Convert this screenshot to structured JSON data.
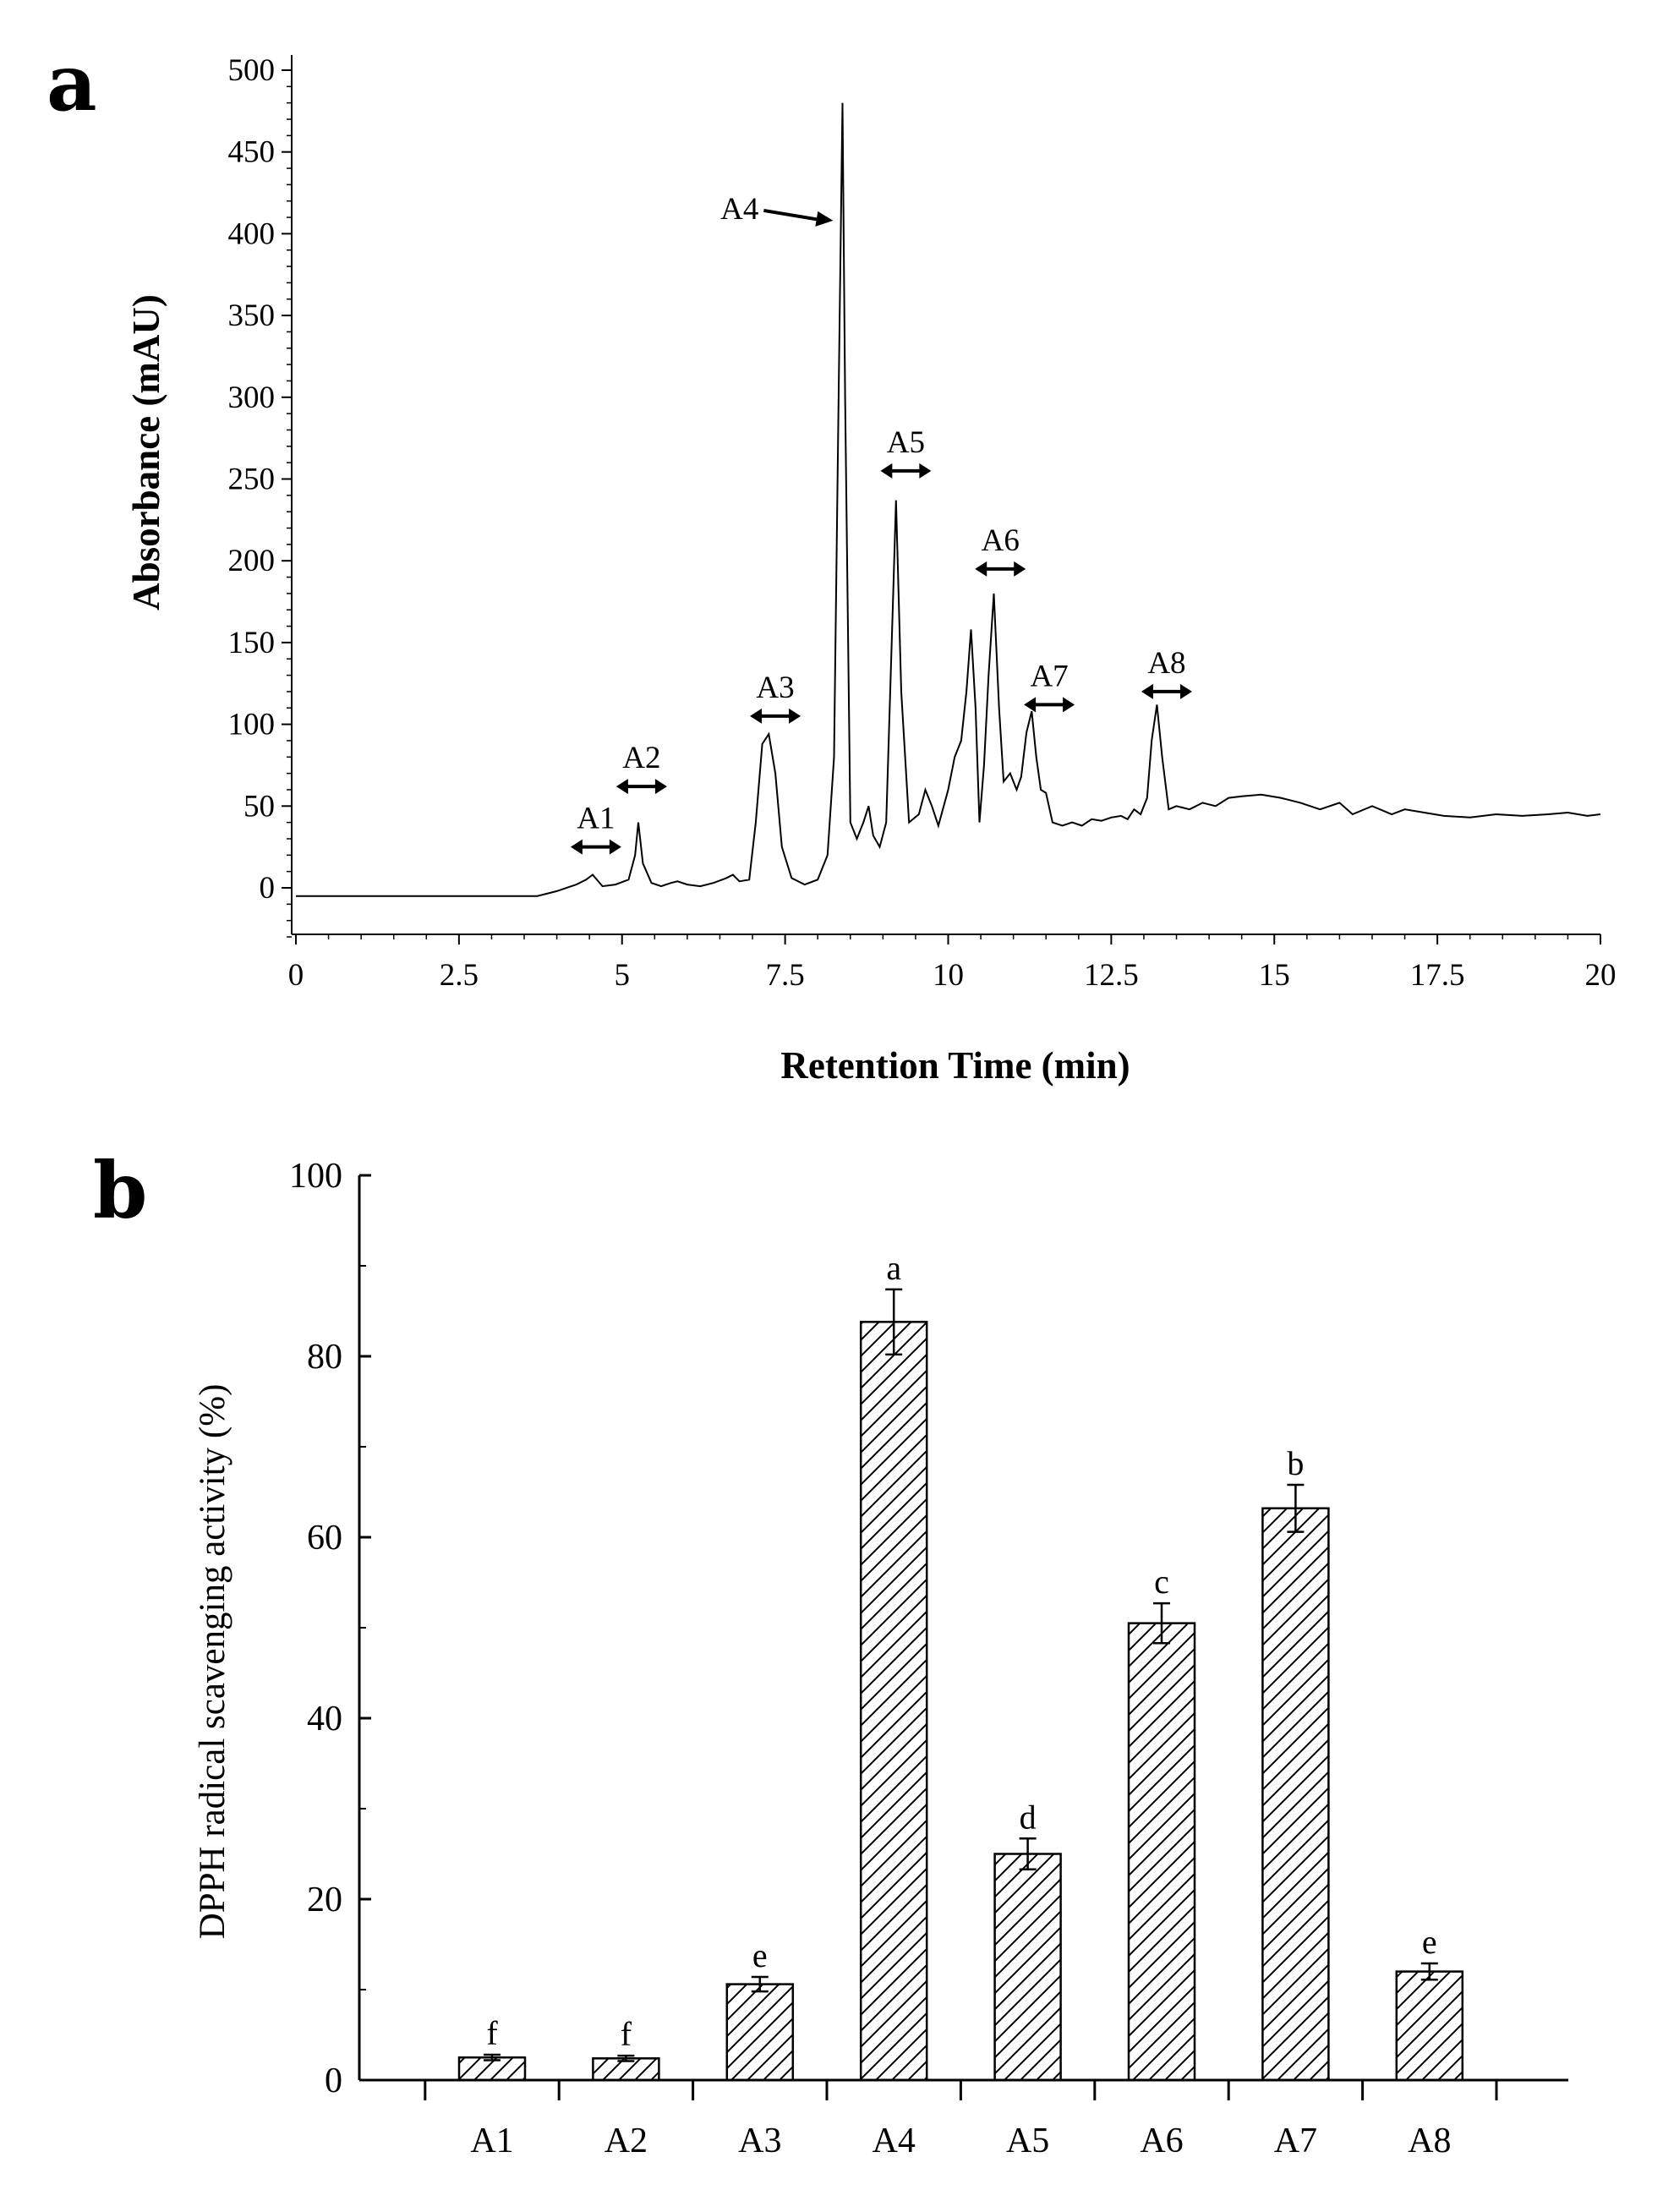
{
  "chart_data": [
    {
      "panel": "a",
      "type": "line",
      "xlabel": "Retention Time (min)",
      "ylabel": "Absorbance (mAU)",
      "xlim": [
        0,
        20
      ],
      "ylim": [
        -30,
        500
      ],
      "xticks": [
        "0",
        "2.5",
        "5",
        "7.5",
        "10",
        "12.5",
        "15",
        "17.5",
        "20"
      ],
      "yticks": [
        "0",
        "50",
        "100",
        "150",
        "200",
        "250",
        "300",
        "350",
        "400",
        "450",
        "500"
      ],
      "trace": {
        "x": [
          0,
          2.0,
          3.7,
          4.0,
          4.3,
          4.45,
          4.55,
          4.7,
          4.9,
          5.1,
          5.2,
          5.25,
          5.32,
          5.45,
          5.6,
          5.75,
          5.85,
          6.0,
          6.2,
          6.4,
          6.6,
          6.7,
          6.8,
          6.95,
          7.05,
          7.15,
          7.25,
          7.35,
          7.45,
          7.6,
          7.8,
          8.0,
          8.15,
          8.25,
          8.32,
          8.38,
          8.42,
          8.5,
          8.6,
          8.7,
          8.78,
          8.85,
          8.95,
          9.05,
          9.15,
          9.2,
          9.28,
          9.4,
          9.55,
          9.65,
          9.75,
          9.85,
          10.0,
          10.1,
          10.2,
          10.28,
          10.35,
          10.42,
          10.48,
          10.55,
          10.62,
          10.7,
          10.78,
          10.85,
          10.95,
          11.05,
          11.12,
          11.2,
          11.28,
          11.35,
          11.42,
          11.5,
          11.6,
          11.75,
          11.9,
          12.05,
          12.2,
          12.35,
          12.5,
          12.65,
          12.75,
          12.85,
          12.95,
          13.05,
          13.12,
          13.2,
          13.28,
          13.38,
          13.5,
          13.7,
          13.9,
          14.1,
          14.3,
          14.5,
          14.8,
          15.1,
          15.4,
          15.7,
          16.0,
          16.2,
          16.5,
          16.8,
          17.0,
          17.3,
          17.6,
          18.0,
          18.4,
          18.8,
          19.2,
          19.5,
          19.8,
          20.0
        ],
        "y": [
          -5,
          -5,
          -5,
          -2,
          2,
          5,
          8,
          1,
          2,
          5,
          20,
          40,
          15,
          3,
          1,
          3,
          4,
          2,
          1,
          3,
          6,
          8,
          4,
          5,
          40,
          88,
          94,
          70,
          25,
          6,
          2,
          5,
          20,
          80,
          300,
          480,
          300,
          40,
          30,
          40,
          50,
          32,
          25,
          40,
          170,
          237,
          120,
          40,
          45,
          60,
          50,
          38,
          60,
          80,
          90,
          120,
          158,
          110,
          40,
          75,
          130,
          180,
          110,
          65,
          70,
          60,
          68,
          95,
          108,
          80,
          60,
          58,
          40,
          38,
          40,
          38,
          42,
          41,
          43,
          44,
          42,
          48,
          45,
          55,
          90,
          112,
          80,
          48,
          50,
          48,
          52,
          50,
          55,
          56,
          57,
          55,
          52,
          48,
          52,
          45,
          50,
          45,
          48,
          46,
          44,
          43,
          45,
          44,
          45,
          46,
          44,
          45
        ]
      },
      "peak_labels": [
        {
          "label": "A1",
          "x": 4.6,
          "y": 25
        },
        {
          "label": "A2",
          "x": 5.3,
          "y": 62
        },
        {
          "label": "A3",
          "x": 7.35,
          "y": 105
        },
        {
          "label": "A5",
          "x": 9.35,
          "y": 255
        },
        {
          "label": "A6",
          "x": 10.8,
          "y": 195
        },
        {
          "label": "A7",
          "x": 11.55,
          "y": 112
        },
        {
          "label": "A8",
          "x": 13.35,
          "y": 120
        }
      ],
      "callout": {
        "label": "A4",
        "x": 8.3,
        "y": 408
      }
    },
    {
      "panel": "b",
      "type": "bar",
      "ylabel": "DPPH radical scavenging activity (%)",
      "ylim": [
        0,
        100
      ],
      "yticks": [
        "0",
        "20",
        "40",
        "60",
        "80",
        "100"
      ],
      "categories": [
        "A1",
        "A2",
        "A3",
        "A4",
        "A5",
        "A6",
        "A7",
        "A8"
      ],
      "values": [
        2.5,
        2.4,
        10.6,
        83.8,
        25.0,
        50.5,
        63.2,
        12.0
      ],
      "errors": [
        0.3,
        0.3,
        0.8,
        3.6,
        1.7,
        2.2,
        2.6,
        0.9
      ],
      "significance": [
        "f",
        "f",
        "e",
        "a",
        "d",
        "c",
        "b",
        "e"
      ]
    }
  ],
  "panels": {
    "a": {
      "letter": "a"
    },
    "b": {
      "letter": "b"
    }
  }
}
